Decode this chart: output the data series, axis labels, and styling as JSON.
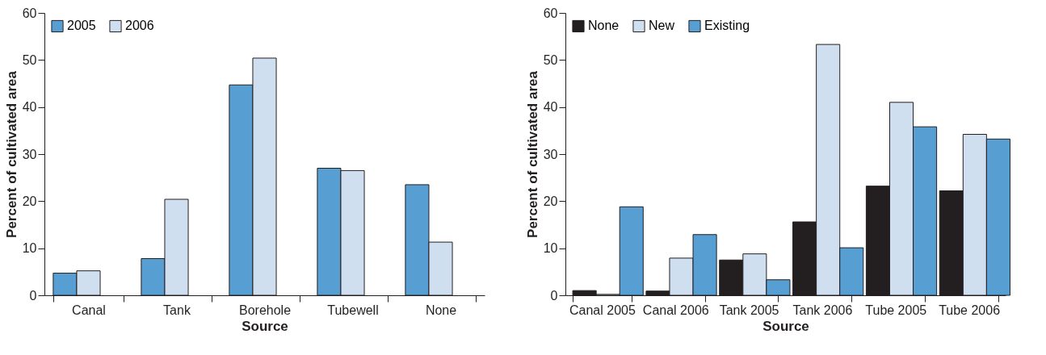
{
  "chart_data": [
    {
      "type": "bar",
      "categories": [
        "Canal",
        "Tank",
        "Borehole",
        "Tubewell",
        "None"
      ],
      "xlabel": "Source",
      "ylabel": "Percent of cultivated area",
      "ylim": [
        0,
        60
      ],
      "yticks": [
        0,
        10,
        20,
        30,
        40,
        50,
        60
      ],
      "legend": "top left",
      "grid": false,
      "series": [
        {
          "name": "2005",
          "color": "#579fd3",
          "values": [
            4.7,
            7.8,
            44.7,
            27,
            23.5
          ]
        },
        {
          "name": "2006",
          "color": "#d0dff0",
          "values": [
            5.2,
            20.4,
            50.4,
            26.5,
            11.3
          ]
        }
      ]
    },
    {
      "type": "bar",
      "categories": [
        "Canal 2005",
        "Canal 2006",
        "Tank 2005",
        "Tank 2006",
        "Tube 2005",
        "Tube 2006"
      ],
      "xlabel": "Source",
      "ylabel": "Percent of cultivated area",
      "ylim": [
        0,
        60
      ],
      "yticks": [
        0,
        10,
        20,
        30,
        40,
        50,
        60
      ],
      "legend": "top left",
      "grid": false,
      "series": [
        {
          "name": "None",
          "color": "#231f20",
          "values": [
            1.0,
            0.9,
            7.5,
            15.6,
            23.2,
            22.2
          ]
        },
        {
          "name": "New",
          "color": "#d0dff0",
          "values": [
            0.2,
            7.9,
            8.8,
            53.3,
            41,
            34.2
          ]
        },
        {
          "name": "Existing",
          "color": "#579fd3",
          "values": [
            18.8,
            12.9,
            3.3,
            10.1,
            35.8,
            33.2
          ]
        }
      ]
    }
  ]
}
